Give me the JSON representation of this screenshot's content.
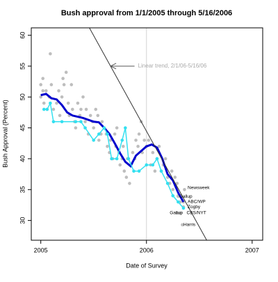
{
  "chart_data": {
    "type": "scatter",
    "title": "Bush approval from 1/1/2005 through 5/16/2006",
    "x_label": "Date of Survey",
    "y_label": "Bush Approval (Percent)",
    "xlim": [
      2004.91,
      2007.1
    ],
    "ylim": [
      26.8,
      61.2
    ],
    "xticks": [
      2005,
      2006,
      2007
    ],
    "yticks": [
      30,
      35,
      40,
      45,
      50,
      55,
      60
    ],
    "vlines": [
      2006
    ],
    "vline_color": "#d3d3d3",
    "series": [
      {
        "mode": "points",
        "color": "#bebebe",
        "x": [
          2005.0,
          2005.0,
          2005.02,
          2005.02,
          2005.03,
          2005.05,
          2005.06,
          2005.08,
          2005.09,
          2005.1,
          2005.12,
          2005.15,
          2005.17,
          2005.18,
          2005.2,
          2005.21,
          2005.22,
          2005.24,
          2005.26,
          2005.27,
          2005.29,
          2005.3,
          2005.32,
          2005.33,
          2005.35,
          2005.37,
          2005.38,
          2005.4,
          2005.42,
          2005.43,
          2005.45,
          2005.47,
          2005.49,
          2005.5,
          2005.52,
          2005.54,
          2005.55,
          2005.57,
          2005.58,
          2005.6,
          2005.62,
          2005.63,
          2005.65,
          2005.66,
          2005.68,
          2005.7,
          2005.71,
          2005.72,
          2005.74,
          2005.75,
          2005.77,
          2005.78,
          2005.79,
          2005.81,
          2005.82,
          2005.84,
          2005.85,
          2005.87,
          2005.89,
          2005.9,
          2005.92,
          2005.93,
          2005.95,
          2005.96,
          2005.98,
          2006.0,
          2006.02,
          2006.04,
          2006.06,
          2006.08,
          2006.1,
          2006.12,
          2006.14,
          2006.16,
          2006.18,
          2006.2,
          2006.22,
          2006.24,
          2006.25,
          2006.27,
          2006.29,
          2006.3,
          2006.32,
          2006.36,
          2006.3,
          2006.35,
          2006.35,
          2006.29,
          2006.32,
          2006.34
        ],
        "values": [
          52,
          50,
          53,
          51,
          49,
          51,
          48,
          50,
          57,
          52,
          48,
          49,
          51,
          47,
          50,
          53,
          52,
          54,
          49,
          47,
          52,
          48,
          46,
          45,
          49,
          47,
          48,
          50,
          46,
          48,
          44,
          47,
          46,
          45,
          48,
          47,
          43,
          44,
          46,
          45,
          44,
          42,
          41,
          43,
          40,
          44,
          42,
          45,
          41,
          39,
          40,
          42,
          38,
          37,
          40,
          36,
          39,
          41,
          40,
          43,
          42,
          44,
          46,
          41,
          43,
          42,
          43,
          39,
          41,
          38,
          40,
          42,
          38,
          39,
          40,
          37,
          36,
          38,
          35,
          37,
          36,
          34,
          33,
          35,
          33.9,
          33,
          32.2,
          31.2,
          31.2,
          29.3
        ]
      },
      {
        "mode": "line",
        "color": "#0000cd",
        "width": 3,
        "x": [
          2005.0,
          2005.05,
          2005.1,
          2005.15,
          2005.2,
          2005.25,
          2005.3,
          2005.4,
          2005.5,
          2005.55,
          2005.6,
          2005.65,
          2005.7,
          2005.75,
          2005.8,
          2005.85,
          2005.9,
          2006.0,
          2006.05,
          2006.1,
          2006.15,
          2006.2,
          2006.25,
          2006.3,
          2006.35
        ],
        "values": [
          50.3,
          50.5,
          49.8,
          49.6,
          48.7,
          47.5,
          47.0,
          46.6,
          46.0,
          45.9,
          45.0,
          44.0,
          42.5,
          40.9,
          39.5,
          38.8,
          40.5,
          42.0,
          42.3,
          41.8,
          40.0,
          37.5,
          36.5,
          34.5,
          33.0
        ]
      },
      {
        "mode": "line+points",
        "color": "#33e0f0",
        "width": 1.5,
        "x": [
          2005.03,
          2005.06,
          2005.09,
          2005.12,
          2005.2,
          2005.33,
          2005.38,
          2005.42,
          2005.5,
          2005.55,
          2005.6,
          2005.63,
          2005.67,
          2005.72,
          2005.77,
          2005.8,
          2005.83,
          2005.88,
          2005.93,
          2006.0,
          2006.06,
          2006.1,
          2006.14,
          2006.2,
          2006.25,
          2006.3,
          2006.35
        ],
        "values": [
          48,
          48,
          49,
          46,
          46,
          46,
          46,
          45,
          43,
          44,
          45,
          44,
          40,
          40,
          43,
          45,
          40,
          38,
          38,
          39,
          39,
          40,
          38,
          36,
          34,
          33,
          32
        ]
      },
      {
        "mode": "line",
        "color": "#333333",
        "width": 1,
        "x": [
          2005.46,
          2006.57
        ],
        "values": [
          61.2,
          26.8
        ]
      }
    ],
    "annotation": {
      "text": "Linear trend, 2/1/06-5/16/06",
      "x": 2005.92,
      "y": 55,
      "arrow_x": 2005.66,
      "color": "#aaaaaa"
    },
    "point_labels": [
      {
        "text": "Newsweek",
        "x": 2006.39,
        "y": 35.3
      },
      {
        "text": "Gallup",
        "x": 2006.31,
        "y": 33.9
      },
      {
        "text": "ABC/WP",
        "x": 2006.39,
        "y": 33.0
      },
      {
        "text": "Zogby",
        "x": 2006.39,
        "y": 32.2
      },
      {
        "text": "Gallup",
        "x": 2006.22,
        "y": 31.2
      },
      {
        "text": "CBS/NYT",
        "x": 2006.38,
        "y": 31.2
      },
      {
        "text": "Harris",
        "x": 2006.35,
        "y": 29.3
      }
    ]
  }
}
